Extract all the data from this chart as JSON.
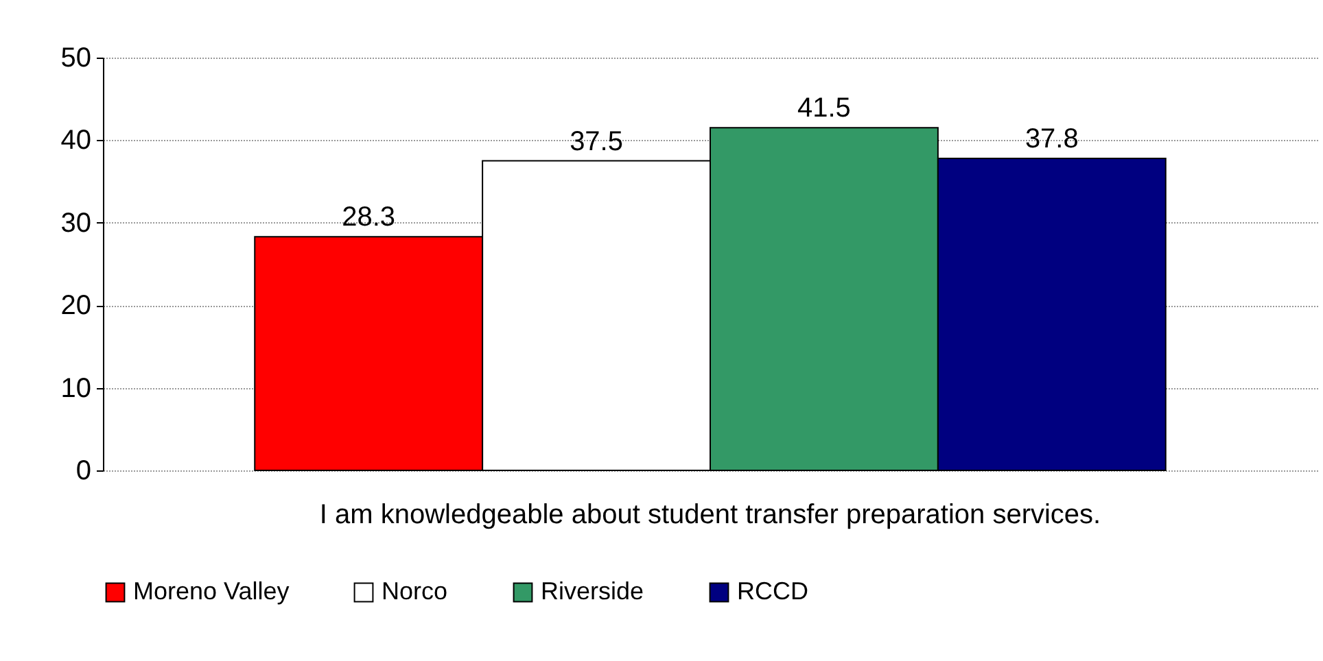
{
  "chart_data": {
    "type": "bar",
    "categories": [
      "I am knowledgeable about student transfer preparation services."
    ],
    "series": [
      {
        "name": "Moreno Valley",
        "color": "#ff0000",
        "values": [
          28.3
        ]
      },
      {
        "name": "Norco",
        "color": "#ffffff",
        "values": [
          37.5
        ]
      },
      {
        "name": "Riverside",
        "color": "#339966",
        "values": [
          41.5
        ]
      },
      {
        "name": "RCCD",
        "color": "#000080",
        "values": [
          37.8
        ]
      }
    ],
    "ylim": [
      0,
      50
    ],
    "yticks": [
      0,
      10,
      20,
      30,
      40,
      50
    ],
    "grid": "y",
    "legend": "bottom",
    "data_labels": true
  }
}
